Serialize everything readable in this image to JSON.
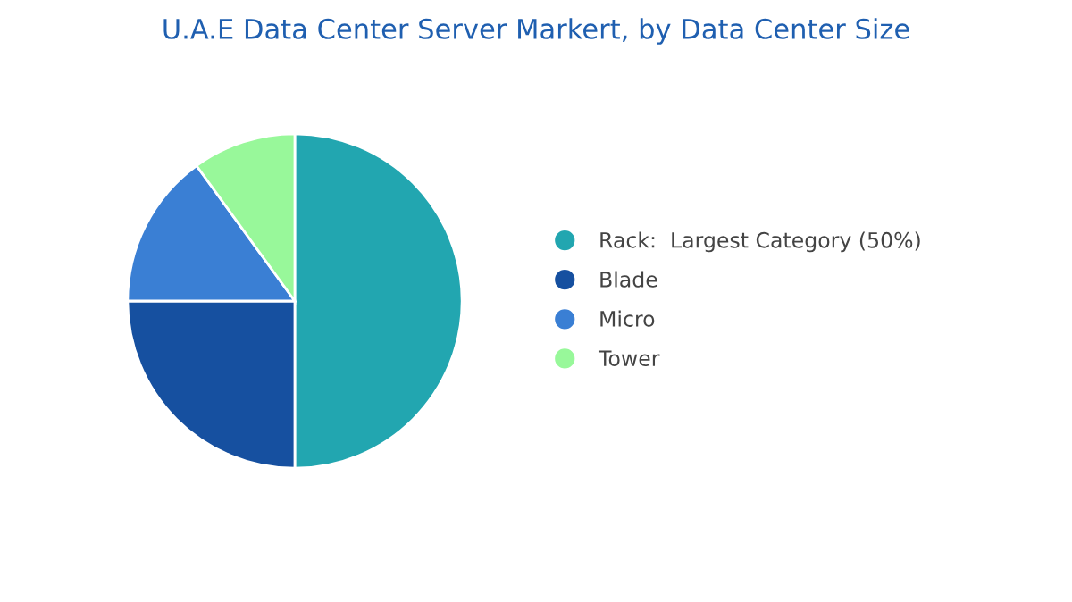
{
  "chart_data": {
    "type": "pie",
    "title": "U.A.E Data Center Server Markert, by Data Center Size",
    "categories": [
      "Rack:  Largest Category (50%)",
      "Blade",
      "Micro",
      "Tower"
    ],
    "values": [
      50,
      25,
      15,
      10
    ],
    "colors": [
      "#22a6b0",
      "#1650a0",
      "#3a7fd4",
      "#98f89a"
    ],
    "legend": "right"
  }
}
